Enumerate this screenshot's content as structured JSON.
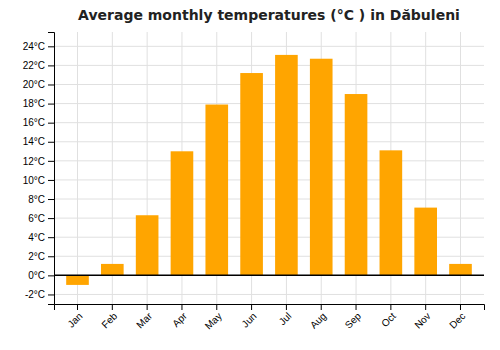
{
  "chart_data": {
    "type": "bar",
    "title": "Average monthly temperatures (°C ) in Dăbuleni",
    "categories": [
      "Jan",
      "Feb",
      "Mar",
      "Apr",
      "May",
      "Jun",
      "Jul",
      "Aug",
      "Sep",
      "Oct",
      "Nov",
      "Dec"
    ],
    "values": [
      -1.0,
      1.2,
      6.3,
      13.0,
      17.9,
      21.2,
      23.1,
      22.7,
      19.0,
      13.1,
      7.1,
      1.2
    ],
    "color": "#FFA500",
    "ylim": [
      -3,
      25.5
    ],
    "yticks": [
      {
        "value": -2,
        "label": "-2°C"
      },
      {
        "value": 0,
        "label": "0°C"
      },
      {
        "value": 2,
        "label": "2°C"
      },
      {
        "value": 4,
        "label": "4°C"
      },
      {
        "value": 6,
        "label": "6°C"
      },
      {
        "value": 8,
        "label": "8°C"
      },
      {
        "value": 10,
        "label": "10°C"
      },
      {
        "value": 12,
        "label": "12°C"
      },
      {
        "value": 14,
        "label": "14°C"
      },
      {
        "value": 16,
        "label": "16°C"
      },
      {
        "value": 18,
        "label": "18°C"
      },
      {
        "value": 20,
        "label": "20°C"
      },
      {
        "value": 22,
        "label": "22°C"
      },
      {
        "value": 24,
        "label": "24°C"
      }
    ],
    "grid": true
  }
}
